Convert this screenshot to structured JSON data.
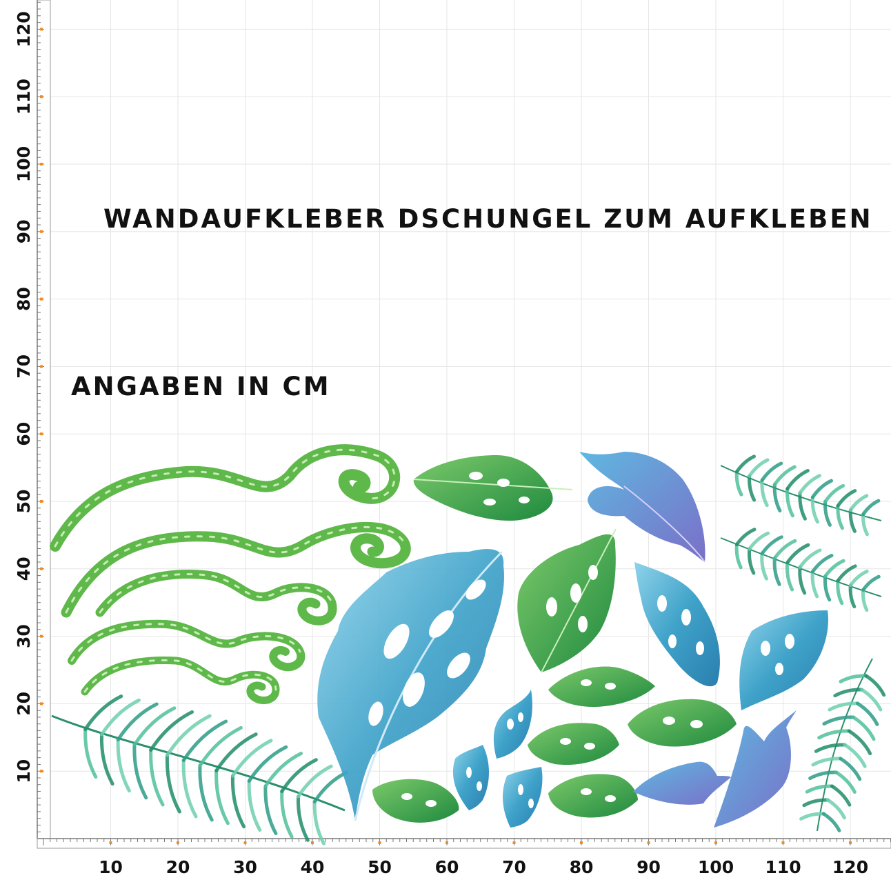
{
  "title": "WANDAUFKLEBER DSCHUNGEL ZUM AUFKLEBEN",
  "unit_note": "ANGABEN IN CM",
  "ruler": {
    "unit": "cm",
    "x_labels": [
      "10",
      "20",
      "30",
      "40",
      "50",
      "60",
      "70",
      "80",
      "90",
      "100",
      "110",
      "120"
    ],
    "y_labels": [
      "10",
      "20",
      "30",
      "40",
      "50",
      "60",
      "70",
      "80",
      "90",
      "100",
      "110",
      "120"
    ]
  },
  "colors": {
    "grid": "#e6e6e6",
    "ruler": "#9a9a9a",
    "tick_mark": "#f08a24",
    "leaf_green": "#3aa552",
    "leaf_green_dark": "#1f7f3c",
    "leaf_blue": "#3c9dc6",
    "leaf_teal": "#2b9b86",
    "leaf_purple": "#7b7fcf",
    "swirl_green": "#6cc04a"
  },
  "stickers": [
    "swirl-vine",
    "swirl-vine",
    "swirl-vine",
    "swirl-vine",
    "swirl-vine",
    "palm-frond",
    "palm-frond",
    "palm-frond",
    "palm-frond",
    "monstera-leaf-large-blue",
    "monstera-leaf-green",
    "monstera-leaf-blue",
    "anthurium-leaf-purple-blue"
  ]
}
